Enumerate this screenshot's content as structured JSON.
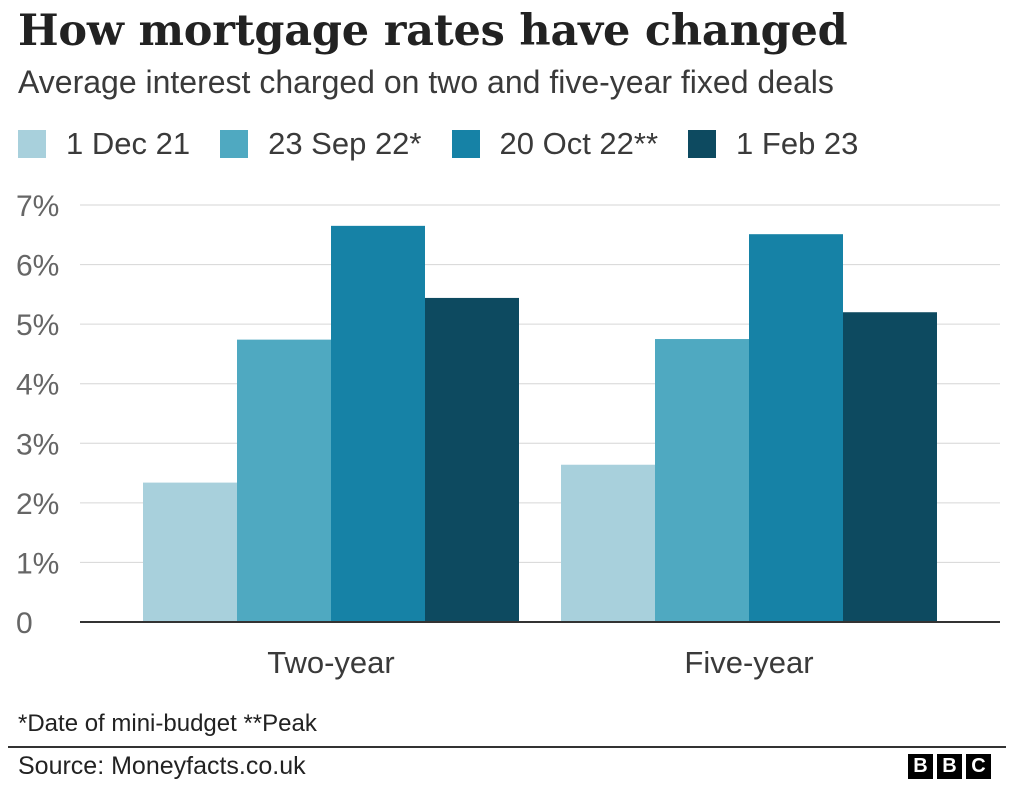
{
  "header": {
    "title": "How mortgage rates have changed",
    "subtitle": "Average interest charged on two and five-year fixed deals"
  },
  "chart_data": {
    "type": "bar",
    "title": "How mortgage rates have changed",
    "subtitle": "Average interest charged on two and five-year fixed deals",
    "categories": [
      "Two-year",
      "Five-year"
    ],
    "series": [
      {
        "name": "1 Dec 21",
        "color": "#a8d0dc",
        "values": [
          2.34,
          2.64
        ]
      },
      {
        "name": "23 Sep 22*",
        "color": "#4fa9c1",
        "values": [
          4.74,
          4.75
        ]
      },
      {
        "name": "20 Oct 22**",
        "color": "#1682a6",
        "values": [
          6.65,
          6.51
        ]
      },
      {
        "name": "1 Feb 23",
        "color": "#0d4a60",
        "values": [
          5.44,
          5.2
        ]
      }
    ],
    "y_ticks": [
      "0",
      "1%",
      "2%",
      "3%",
      "4%",
      "5%",
      "6%",
      "7%"
    ],
    "ylim": [
      0,
      7
    ],
    "grid": true,
    "legend_position": "top-left",
    "xlabel": "",
    "ylabel": ""
  },
  "footer": {
    "note": "*Date of mini-budget **Peak",
    "source": "Source: Moneyfacts.co.uk",
    "logo_letters": [
      "B",
      "B",
      "C"
    ]
  }
}
